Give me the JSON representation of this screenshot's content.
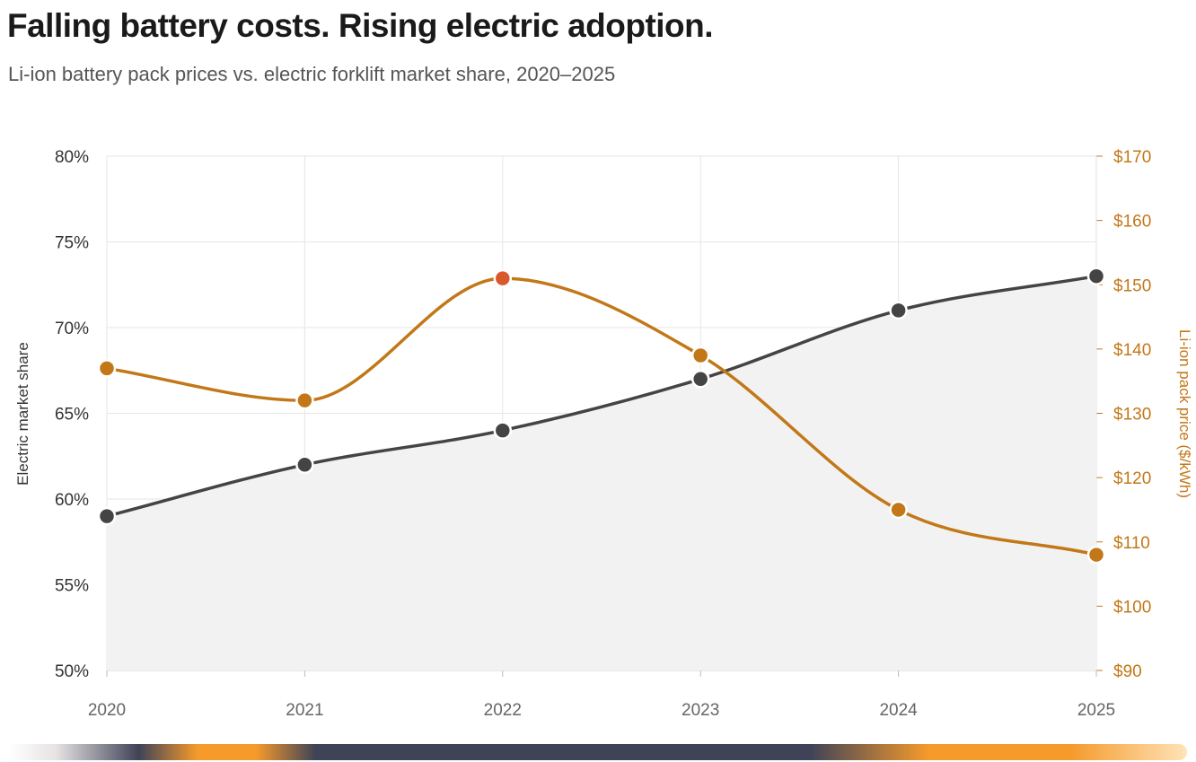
{
  "header": {
    "title": "Falling battery costs. Rising electric adoption.",
    "subtitle": "Li-ion battery pack prices vs. electric forklift market share, 2020–2025"
  },
  "colors": {
    "share_line": "#444444",
    "share_fill": "#f2f2f2",
    "price_line": "#c27818",
    "price_highlight": "#d9582b",
    "grid": "#e6e6e6"
  },
  "chart_data": {
    "type": "line",
    "categories": [
      "2020",
      "2021",
      "2022",
      "2023",
      "2024",
      "2025"
    ],
    "series": [
      {
        "axis": "left",
        "style": "area-line",
        "values": [
          59,
          62,
          64,
          67,
          71,
          73
        ]
      },
      {
        "axis": "right",
        "style": "line",
        "values": [
          137,
          132,
          151,
          139,
          115,
          108
        ],
        "highlight_index": 2
      }
    ],
    "y_left": {
      "label": "Electric market share",
      "range": [
        50,
        80
      ],
      "ticks": [
        "50%",
        "55%",
        "60%",
        "65%",
        "70%",
        "75%",
        "80%"
      ]
    },
    "y_right": {
      "label": "Li-ion pack price ($/kWh)",
      "range": [
        90,
        170
      ],
      "ticks": [
        "$90",
        "$100",
        "$110",
        "$120",
        "$130",
        "$140",
        "$150",
        "$160",
        "$170"
      ]
    },
    "grid": true,
    "legend": "none"
  }
}
